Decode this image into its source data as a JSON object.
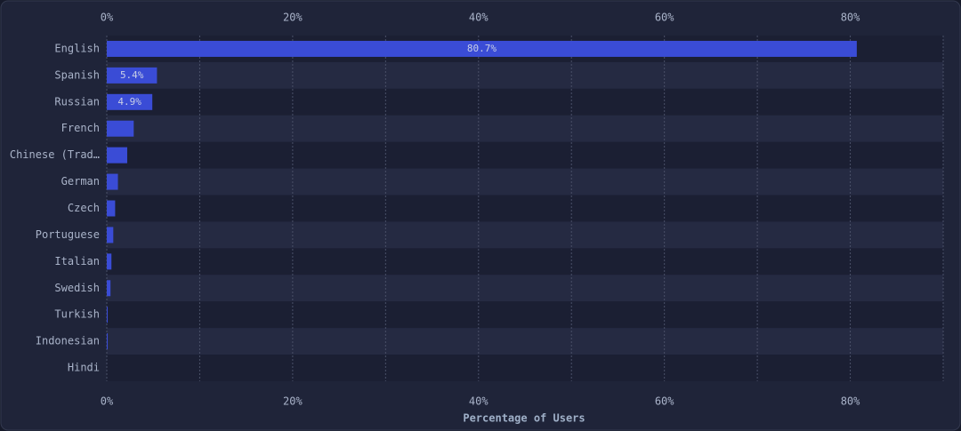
{
  "chart_data": {
    "type": "bar",
    "orientation": "horizontal",
    "x_label": "Percentage of Users",
    "categories": [
      "English",
      "Spanish",
      "Russian",
      "French",
      "Chinese (Trad…",
      "German",
      "Czech",
      "Portuguese",
      "Italian",
      "Swedish",
      "Turkish",
      "Indonesian",
      "Hindi"
    ],
    "values": [
      80.7,
      5.4,
      4.9,
      2.9,
      2.2,
      1.2,
      0.9,
      0.7,
      0.5,
      0.4,
      0.1,
      0.1,
      0.0
    ],
    "value_labels": [
      "80.7%",
      "5.4%",
      "4.9%",
      null,
      null,
      null,
      null,
      null,
      null,
      null,
      null,
      null,
      null
    ],
    "color": "#3a4cd6",
    "xlim": [
      0,
      90
    ],
    "xticks": [
      {
        "value": 0,
        "label": "0%"
      },
      {
        "value": 20,
        "label": "20%"
      },
      {
        "value": 40,
        "label": "40%"
      },
      {
        "value": 60,
        "label": "60%"
      },
      {
        "value": 80,
        "label": "80%"
      }
    ],
    "minor_grid": [
      10,
      30,
      50,
      70,
      90
    ],
    "grid": true
  }
}
